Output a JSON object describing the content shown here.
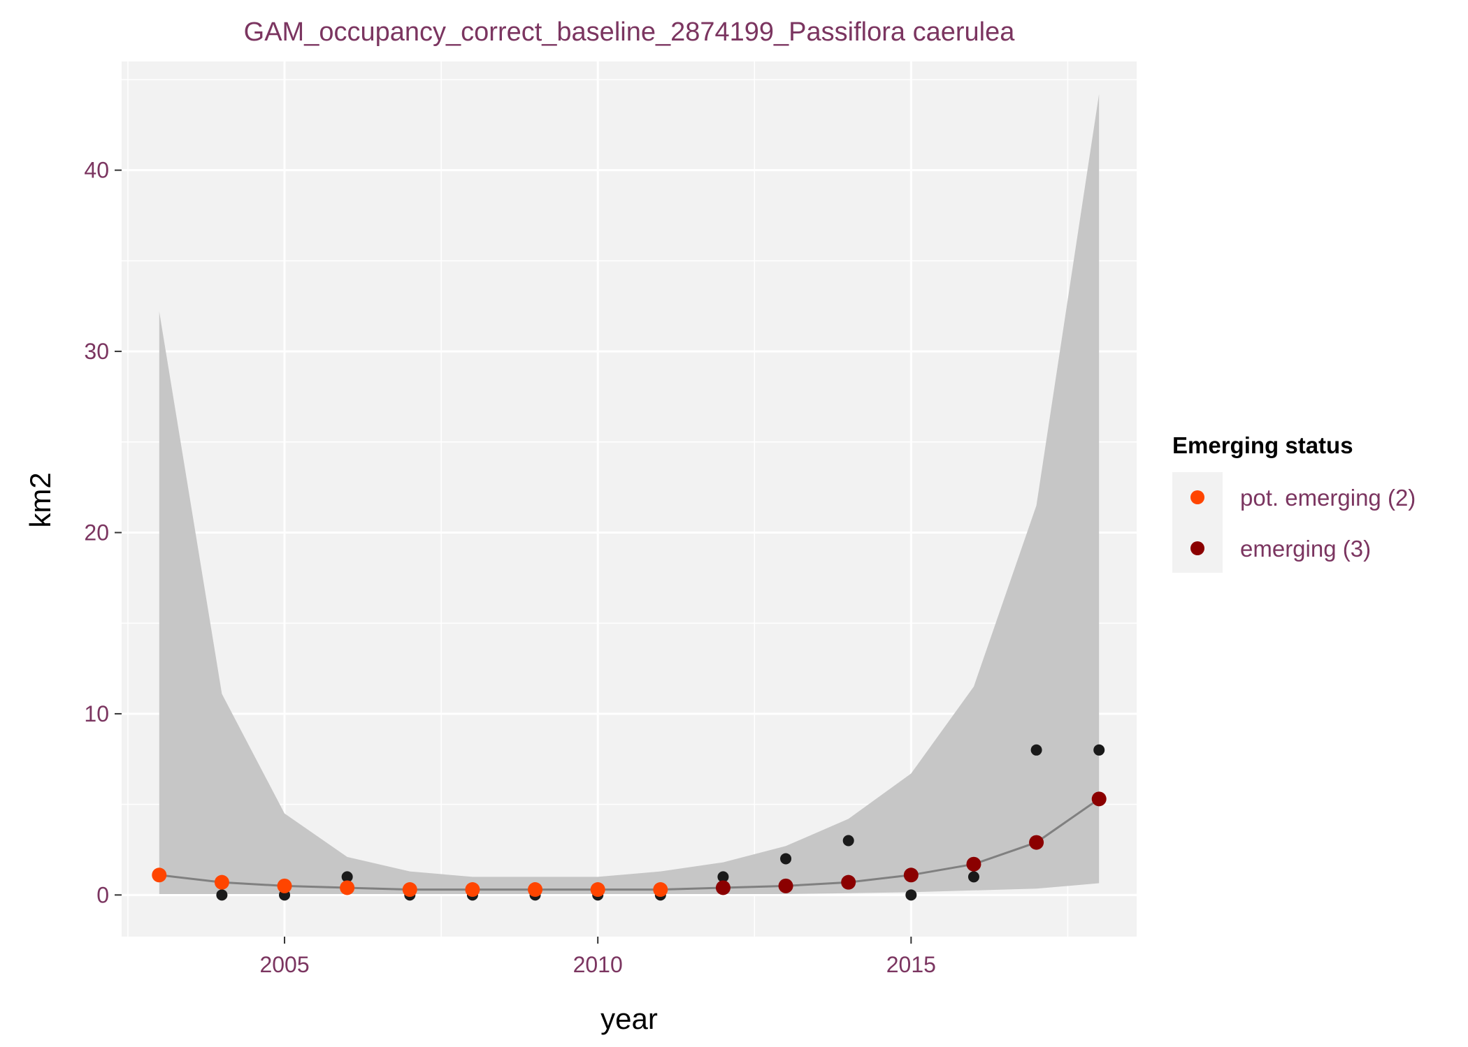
{
  "chart_data": {
    "type": "scatter",
    "title": "GAM_occupancy_correct_baseline_2874199_Passiflora caerulea",
    "xlabel": "year",
    "ylabel": "km2",
    "xlim": [
      2002.4,
      2018.6
    ],
    "ylim": [
      -2.3,
      46.0
    ],
    "x_ticks": [
      2005,
      2010,
      2015
    ],
    "y_ticks": [
      0,
      10,
      20,
      30,
      40
    ],
    "grid": true,
    "legend": {
      "title": "Emerging status",
      "placement": "right",
      "entries": [
        {
          "label": "pot. emerging (2)",
          "color": "#ff4500"
        },
        {
          "label": "emerging (3)",
          "color": "#8b0000"
        }
      ]
    },
    "observed": {
      "color": "#1a1a1a",
      "x": [
        2004,
        2005,
        2006,
        2007,
        2008,
        2009,
        2010,
        2011,
        2012,
        2013,
        2014,
        2015,
        2016,
        2017,
        2018
      ],
      "y": [
        0,
        0,
        1,
        0,
        0,
        0,
        0,
        0,
        1,
        2,
        3,
        0,
        1,
        8,
        8
      ]
    },
    "smooth": {
      "line_color": "#808080",
      "ribbon_color": "#c6c6c6",
      "x": [
        2003,
        2004,
        2005,
        2006,
        2007,
        2008,
        2009,
        2010,
        2011,
        2012,
        2013,
        2014,
        2015,
        2016,
        2017,
        2018
      ],
      "fit": [
        1.1,
        0.7,
        0.5,
        0.4,
        0.3,
        0.3,
        0.3,
        0.3,
        0.3,
        0.4,
        0.5,
        0.7,
        1.1,
        1.7,
        2.9,
        5.3
      ],
      "lower": [
        0.05,
        0.05,
        0.05,
        0.05,
        0.05,
        0.05,
        0.05,
        0.05,
        0.05,
        0.05,
        0.05,
        0.1,
        0.15,
        0.25,
        0.35,
        0.65
      ],
      "upper": [
        32.2,
        11.1,
        4.5,
        2.1,
        1.3,
        1.0,
        1.0,
        1.0,
        1.3,
        1.8,
        2.7,
        4.2,
        6.7,
        11.5,
        21.5,
        44.2
      ]
    },
    "status_points": {
      "x": [
        2003,
        2004,
        2005,
        2006,
        2007,
        2008,
        2009,
        2010,
        2011,
        2012,
        2013,
        2014,
        2015,
        2016,
        2017,
        2018
      ],
      "y": [
        1.1,
        0.7,
        0.5,
        0.4,
        0.3,
        0.3,
        0.3,
        0.3,
        0.3,
        0.4,
        0.5,
        0.7,
        1.1,
        1.7,
        2.9,
        5.3
      ],
      "status": [
        "pot. emerging (2)",
        "pot. emerging (2)",
        "pot. emerging (2)",
        "pot. emerging (2)",
        "pot. emerging (2)",
        "pot. emerging (2)",
        "pot. emerging (2)",
        "pot. emerging (2)",
        "pot. emerging (2)",
        "emerging (3)",
        "emerging (3)",
        "emerging (3)",
        "emerging (3)",
        "emerging (3)",
        "emerging (3)",
        "emerging (3)"
      ]
    }
  }
}
